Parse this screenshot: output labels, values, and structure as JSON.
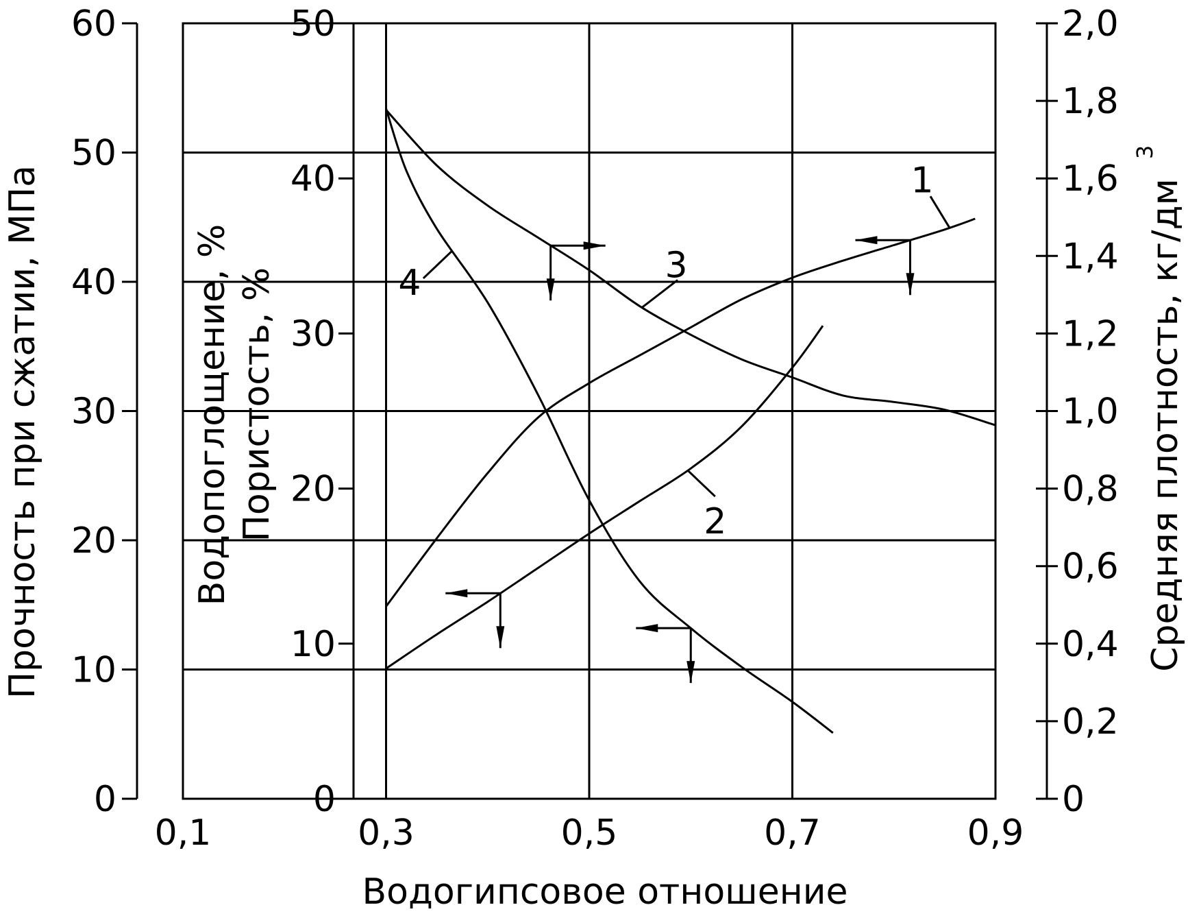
{
  "chart_data": {
    "type": "line",
    "xlabel": "Водогипсовое отношение",
    "x_ticks": [
      "0,1",
      "0,3",
      "0,5",
      "0,7",
      "0,9"
    ],
    "xlim": [
      0.1,
      0.9
    ],
    "grid": true,
    "axes": {
      "strength": {
        "label": "Прочность при сжатии, МПа",
        "ticks": [
          "0",
          "10",
          "20",
          "30",
          "40",
          "50",
          "60"
        ],
        "ylim": [
          0,
          60
        ]
      },
      "absorption": {
        "label_line1": "Водопоглощение, %",
        "label_line2": "Пористость, %",
        "ticks": [
          "0",
          "10",
          "20",
          "30",
          "40",
          "50"
        ],
        "ylim": [
          0,
          50
        ]
      },
      "density": {
        "label": "Средняя плотность, кг/дм",
        "label_superscript": "3",
        "ticks": [
          "0",
          "0,2",
          "0,4",
          "0,6",
          "0,8",
          "1,0",
          "1,2",
          "1,4",
          "1,6",
          "1,8",
          "2,0"
        ],
        "ylim": [
          0,
          2.0
        ]
      }
    },
    "series": [
      {
        "label": "1",
        "axis": "absorption",
        "x": [
          0.3,
          0.35,
          0.4,
          0.45,
          0.5,
          0.55,
          0.6,
          0.65,
          0.7,
          0.75,
          0.8,
          0.85,
          0.88
        ],
        "y": [
          12.4,
          16.8,
          21.0,
          24.6,
          26.8,
          28.6,
          30.4,
          32.2,
          33.6,
          34.7,
          35.7,
          36.7,
          37.4
        ]
      },
      {
        "label": "2",
        "axis": "absorption",
        "x": [
          0.3,
          0.35,
          0.4,
          0.45,
          0.5,
          0.55,
          0.6,
          0.65,
          0.7,
          0.73
        ],
        "y": [
          8.4,
          10.6,
          12.7,
          14.9,
          17.1,
          19.2,
          21.3,
          24.0,
          27.8,
          30.5
        ]
      },
      {
        "label": "3",
        "axis": "strength",
        "x": [
          0.3,
          0.35,
          0.4,
          0.45,
          0.5,
          0.55,
          0.6,
          0.65,
          0.7,
          0.75,
          0.8,
          0.85,
          0.9
        ],
        "y": [
          53.3,
          49.0,
          45.9,
          43.4,
          40.9,
          38.1,
          35.9,
          34.0,
          32.6,
          31.2,
          30.7,
          30.1,
          28.9
        ]
      },
      {
        "label": "4",
        "axis": "density",
        "x": [
          0.3,
          0.32,
          0.35,
          0.4,
          0.45,
          0.5,
          0.55,
          0.6,
          0.65,
          0.7,
          0.74
        ],
        "y": [
          1.78,
          1.62,
          1.47,
          1.28,
          1.04,
          0.77,
          0.56,
          0.44,
          0.34,
          0.25,
          0.17
        ]
      }
    ]
  }
}
